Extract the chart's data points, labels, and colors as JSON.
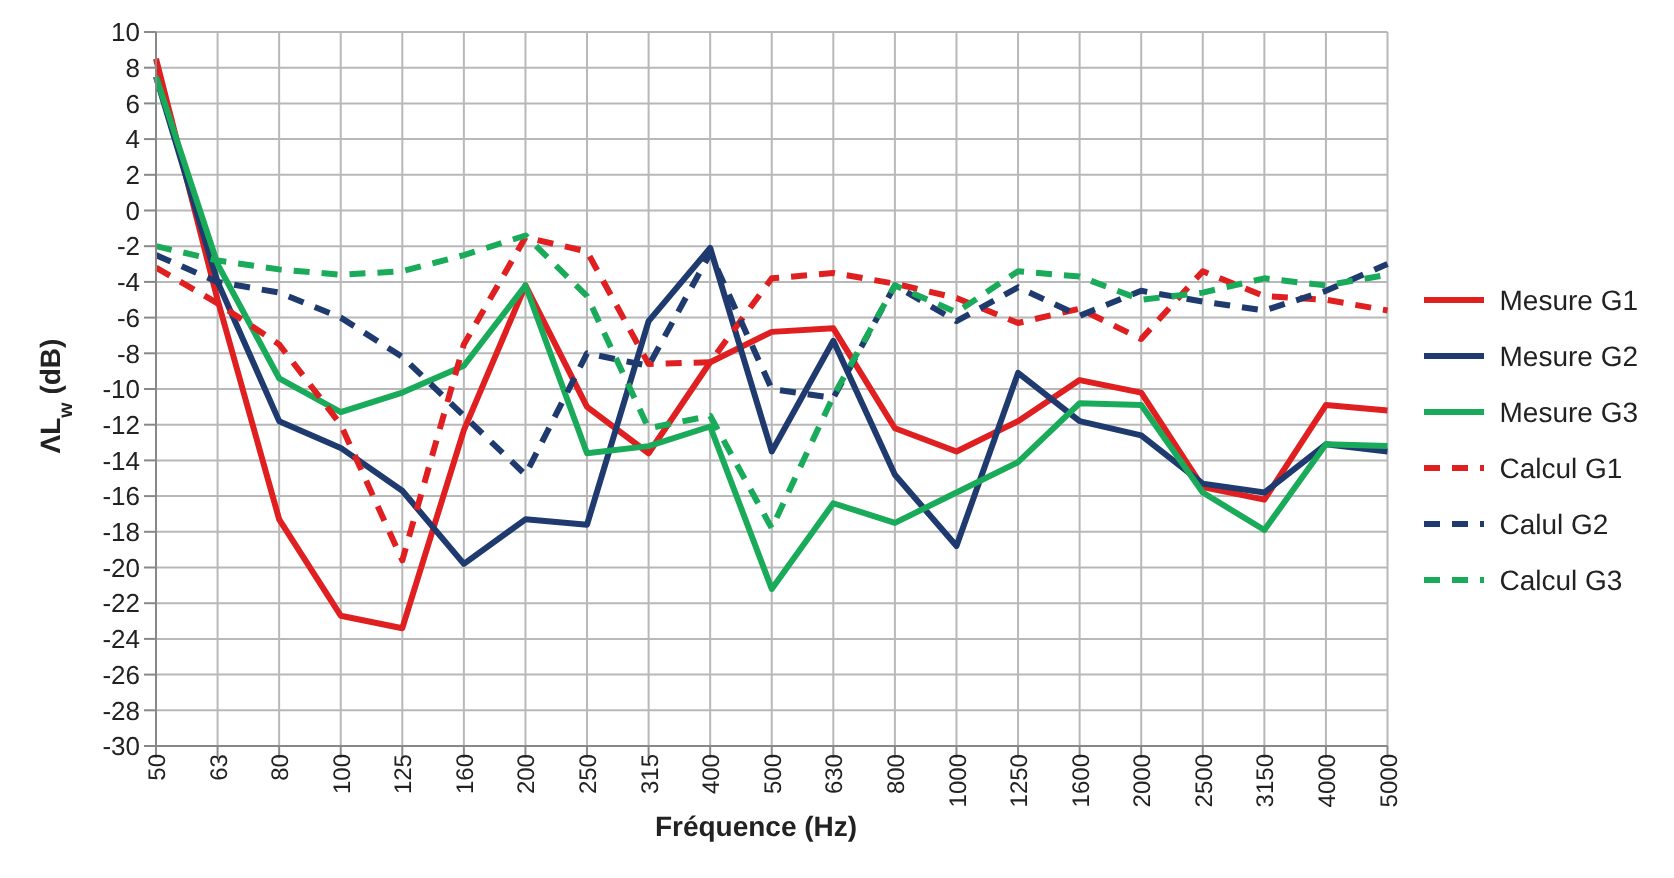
{
  "chart_data": {
    "type": "line",
    "xlabel": "Fréquence (Hz)",
    "ylabel": "ΛL$_{w}$ (dB)",
    "categories": [
      "50",
      "63",
      "80",
      "100",
      "125",
      "160",
      "200",
      "250",
      "315",
      "400",
      "500",
      "630",
      "800",
      "1000",
      "1250",
      "1600",
      "2000",
      "2500",
      "3150",
      "4000",
      "5000"
    ],
    "ylim": [
      -30,
      10
    ],
    "yticks": [
      -30,
      -28,
      -26,
      -24,
      -22,
      -20,
      -18,
      -16,
      -14,
      -12,
      -10,
      -8,
      -6,
      -4,
      -2,
      0,
      2,
      4,
      6,
      8,
      10
    ],
    "grid": true,
    "legend": "right",
    "marker": "none",
    "series": [
      {
        "name": "Mesure G1",
        "color": "#e02020",
        "line_style": "solid",
        "values": [
          8.5,
          -5,
          -17.3,
          -22.7,
          -23.4,
          -12.3,
          -4.2,
          -11,
          -13.6,
          -8.5,
          -6.8,
          -6.6,
          -12.2,
          -13.5,
          -11.8,
          -9.5,
          -10.2,
          -15.5,
          -16.2,
          -10.9,
          -11.2
        ]
      },
      {
        "name": "Mesure G2",
        "color": "#1f3a6e",
        "line_style": "solid",
        "values": [
          7.5,
          -4,
          -11.8,
          -13.3,
          -15.7,
          -19.8,
          -17.3,
          -17.6,
          -6.2,
          -2.1,
          -13.5,
          -7.3,
          -14.8,
          -18.8,
          -9.1,
          -11.8,
          -12.6,
          -15.3,
          -15.8,
          -13.1,
          -13.5
        ]
      },
      {
        "name": "Mesure G3",
        "color": "#1aab5a",
        "line_style": "solid",
        "values": [
          7.5,
          -3,
          -9.4,
          -11.3,
          -10.2,
          -8.7,
          -4.2,
          -13.6,
          -13.2,
          -12.1,
          -21.2,
          -16.4,
          -17.5,
          -15.8,
          -14.1,
          -10.8,
          -10.9,
          -15.8,
          -17.9,
          -13.1,
          -13.2
        ]
      },
      {
        "name": "Calcul G1",
        "color": "#e02020",
        "line_style": "dashed",
        "values": [
          -3.2,
          -5.2,
          -7.5,
          -12,
          -19.6,
          -7.5,
          -1.5,
          -2.3,
          -8.6,
          -8.5,
          -3.8,
          -3.5,
          -4.1,
          -4.9,
          -6.3,
          -5.5,
          -7.2,
          -3.4,
          -4.8,
          -5,
          -5.6
        ]
      },
      {
        "name": "Calul G2",
        "color": "#1f3a6e",
        "line_style": "dashed",
        "values": [
          -2.5,
          -4,
          -4.6,
          -6,
          -8.2,
          -11.5,
          -14.8,
          -8,
          -8.7,
          -2.4,
          -10,
          -10.5,
          -4.2,
          -6.2,
          -4.3,
          -5.9,
          -4.5,
          -5.1,
          -5.6,
          -4.5,
          -3
        ]
      },
      {
        "name": "Calcul G3",
        "color": "#1aab5a",
        "line_style": "dashed",
        "values": [
          -2,
          -2.8,
          -3.3,
          -3.6,
          -3.4,
          -2.5,
          -1.4,
          -4.8,
          -12.2,
          -11.5,
          -17.8,
          -10.4,
          -4.2,
          -5.7,
          -3.4,
          -3.7,
          -5,
          -4.6,
          -3.8,
          -4.2,
          -3.6
        ]
      }
    ]
  }
}
